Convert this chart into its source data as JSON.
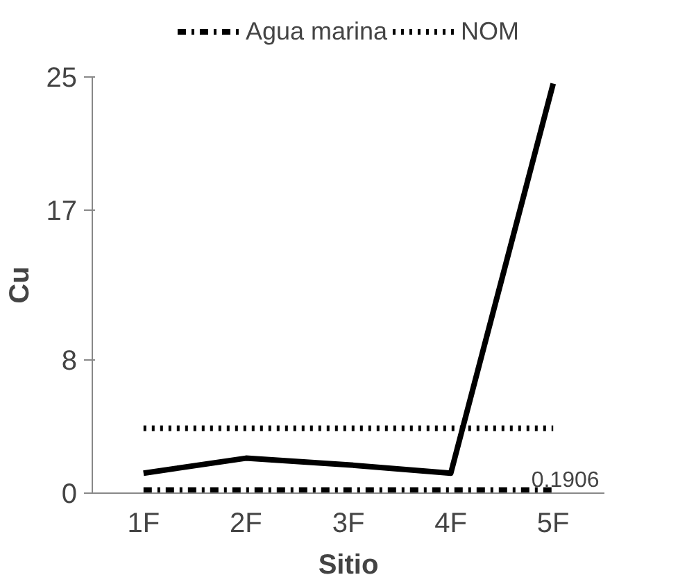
{
  "chart_data": {
    "type": "line",
    "xlabel": "Sitio",
    "ylabel": "Cu",
    "categories": [
      "1F",
      "2F",
      "3F",
      "4F",
      "5F"
    ],
    "series": [
      {
        "color": "#000000",
        "line_style": "solid",
        "values": [
          1.2,
          2.1,
          1.7,
          1.2,
          24.6
        ]
      },
      {
        "name": "Agua marina",
        "color": "#000000",
        "line_style": "dashdot",
        "values": [
          0.1906,
          0.1906,
          0.1906,
          0.1906,
          0.1906
        ]
      },
      {
        "name": "NOM",
        "color": "#000000",
        "line_style": "dotted",
        "values": [
          3.9,
          3.9,
          3.9,
          3.9,
          3.9
        ]
      }
    ],
    "ylim": [
      0,
      25
    ],
    "yticks": [
      0,
      8,
      17,
      25
    ],
    "grid": false,
    "legend": "top",
    "marker": "none",
    "annotations": [
      {
        "text": "0.1906",
        "x": "5F",
        "y": 0.1906
      }
    ]
  }
}
